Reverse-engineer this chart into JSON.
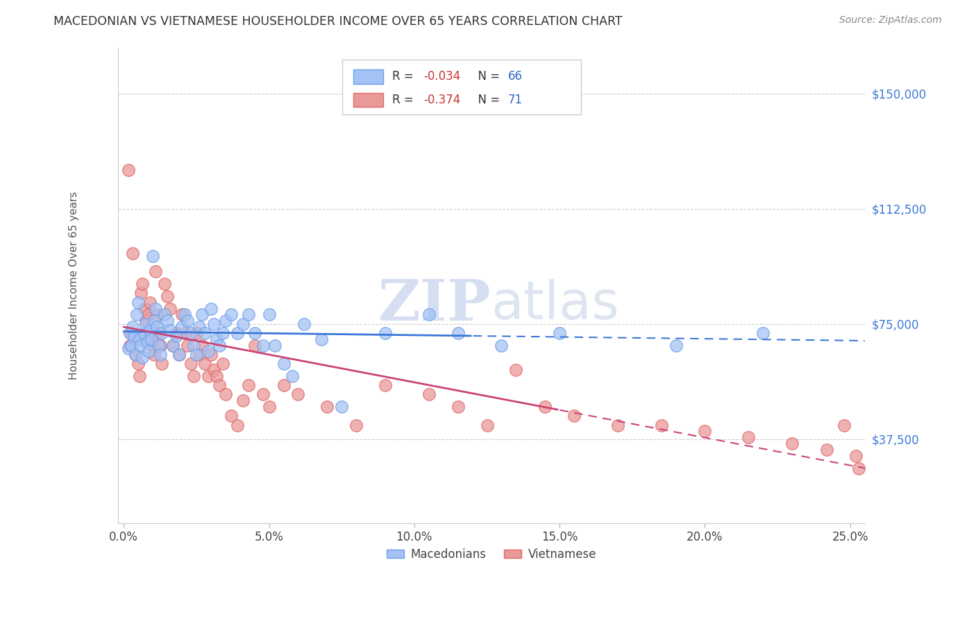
{
  "title": "MACEDONIAN VS VIETNAMESE HOUSEHOLDER INCOME OVER 65 YEARS CORRELATION CHART",
  "source": "Source: ZipAtlas.com",
  "ylabel": "Householder Income Over 65 years",
  "ytick_labels": [
    "$37,500",
    "$75,000",
    "$112,500",
    "$150,000"
  ],
  "ytick_vals": [
    37500,
    75000,
    112500,
    150000
  ],
  "ylim": [
    10000,
    165000
  ],
  "xlim": [
    -0.2,
    25.5
  ],
  "macedonian_R": -0.034,
  "macedonian_N": 66,
  "vietnamese_R": -0.374,
  "vietnamese_N": 71,
  "macedonian_color": "#a4c2f4",
  "vietnamese_color": "#ea9999",
  "macedonian_edge_color": "#6d9eeb",
  "vietnamese_edge_color": "#e06666",
  "macedonian_line_color": "#3c78d8",
  "vietnamese_line_color": "#cc4477",
  "background_color": "#ffffff",
  "mac_solid_end": 12.0,
  "vie_solid_end": 15.0,
  "macedonian_x": [
    0.15,
    0.2,
    0.25,
    0.3,
    0.35,
    0.4,
    0.45,
    0.5,
    0.55,
    0.6,
    0.65,
    0.7,
    0.75,
    0.8,
    0.85,
    0.9,
    0.95,
    1.0,
    1.05,
    1.1,
    1.15,
    1.2,
    1.25,
    1.3,
    1.4,
    1.5,
    1.6,
    1.7,
    1.8,
    1.9,
    2.0,
    2.1,
    2.2,
    2.3,
    2.4,
    2.5,
    2.6,
    2.7,
    2.8,
    2.9,
    3.0,
    3.1,
    3.2,
    3.3,
    3.4,
    3.5,
    3.7,
    3.9,
    4.1,
    4.3,
    4.5,
    4.8,
    5.0,
    5.2,
    5.5,
    5.8,
    6.2,
    6.8,
    7.5,
    9.0,
    10.5,
    11.5,
    13.0,
    15.0,
    19.0,
    22.0
  ],
  "macedonian_y": [
    67000,
    72000,
    68000,
    74000,
    71000,
    65000,
    78000,
    82000,
    70000,
    68000,
    64000,
    72000,
    75000,
    69000,
    66000,
    73000,
    70000,
    97000,
    76000,
    80000,
    74000,
    68000,
    65000,
    72000,
    78000,
    76000,
    73000,
    68000,
    71000,
    65000,
    74000,
    78000,
    76000,
    72000,
    68000,
    65000,
    74000,
    78000,
    72000,
    66000,
    80000,
    75000,
    70000,
    68000,
    72000,
    76000,
    78000,
    72000,
    75000,
    78000,
    72000,
    68000,
    78000,
    68000,
    62000,
    58000,
    75000,
    70000,
    48000,
    72000,
    78000,
    72000,
    68000,
    72000,
    68000,
    72000
  ],
  "vietnamese_x": [
    0.15,
    0.2,
    0.25,
    0.3,
    0.4,
    0.5,
    0.55,
    0.6,
    0.65,
    0.7,
    0.75,
    0.8,
    0.85,
    0.9,
    0.95,
    1.0,
    1.05,
    1.1,
    1.15,
    1.2,
    1.25,
    1.3,
    1.4,
    1.5,
    1.6,
    1.7,
    1.8,
    1.9,
    2.0,
    2.1,
    2.2,
    2.3,
    2.4,
    2.5,
    2.6,
    2.7,
    2.8,
    2.9,
    3.0,
    3.1,
    3.2,
    3.3,
    3.4,
    3.5,
    3.7,
    3.9,
    4.1,
    4.3,
    4.5,
    4.8,
    5.0,
    5.5,
    6.0,
    7.0,
    8.0,
    9.0,
    10.5,
    11.5,
    12.5,
    13.5,
    14.5,
    15.5,
    17.0,
    18.5,
    20.0,
    21.5,
    23.0,
    24.2,
    24.8,
    25.2,
    25.3
  ],
  "vietnamese_y": [
    125000,
    68000,
    72000,
    98000,
    65000,
    62000,
    58000,
    85000,
    88000,
    80000,
    76000,
    70000,
    78000,
    82000,
    72000,
    68000,
    65000,
    92000,
    78000,
    72000,
    68000,
    62000,
    88000,
    84000,
    80000,
    68000,
    72000,
    65000,
    78000,
    72000,
    68000,
    62000,
    58000,
    72000,
    65000,
    68000,
    62000,
    58000,
    65000,
    60000,
    58000,
    55000,
    62000,
    52000,
    45000,
    42000,
    50000,
    55000,
    68000,
    52000,
    48000,
    55000,
    52000,
    48000,
    42000,
    55000,
    52000,
    48000,
    42000,
    60000,
    48000,
    45000,
    42000,
    42000,
    40000,
    38000,
    36000,
    34000,
    42000,
    32000,
    28000
  ]
}
